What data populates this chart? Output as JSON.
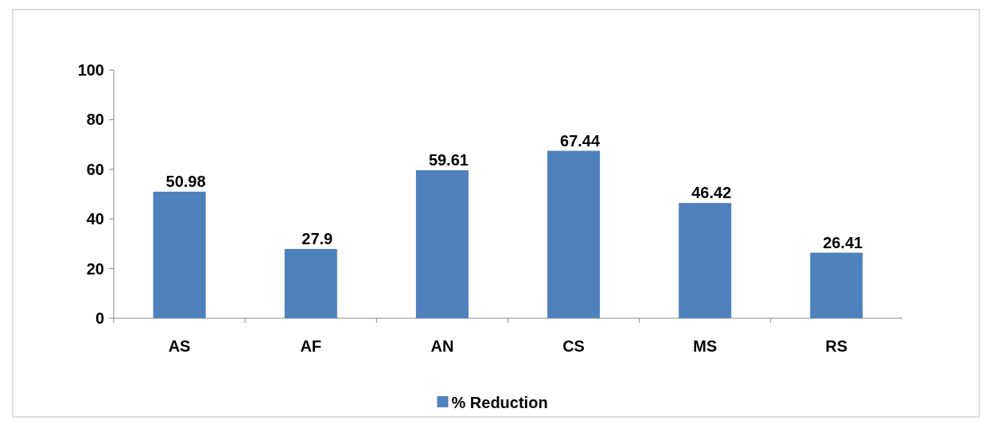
{
  "chart_data": {
    "type": "bar",
    "categories": [
      "AS",
      "AF",
      "AN",
      "CS",
      "MS",
      "RS"
    ],
    "series": [
      {
        "name": "% Reduction",
        "color": "#4f81bd",
        "values": [
          50.98,
          27.9,
          59.61,
          67.44,
          46.42,
          26.41
        ]
      }
    ],
    "ylim": [
      0,
      100
    ],
    "yticks": [
      0,
      20,
      40,
      60,
      80,
      100
    ],
    "data_labels": true,
    "legend": "bottom",
    "grid": false
  }
}
